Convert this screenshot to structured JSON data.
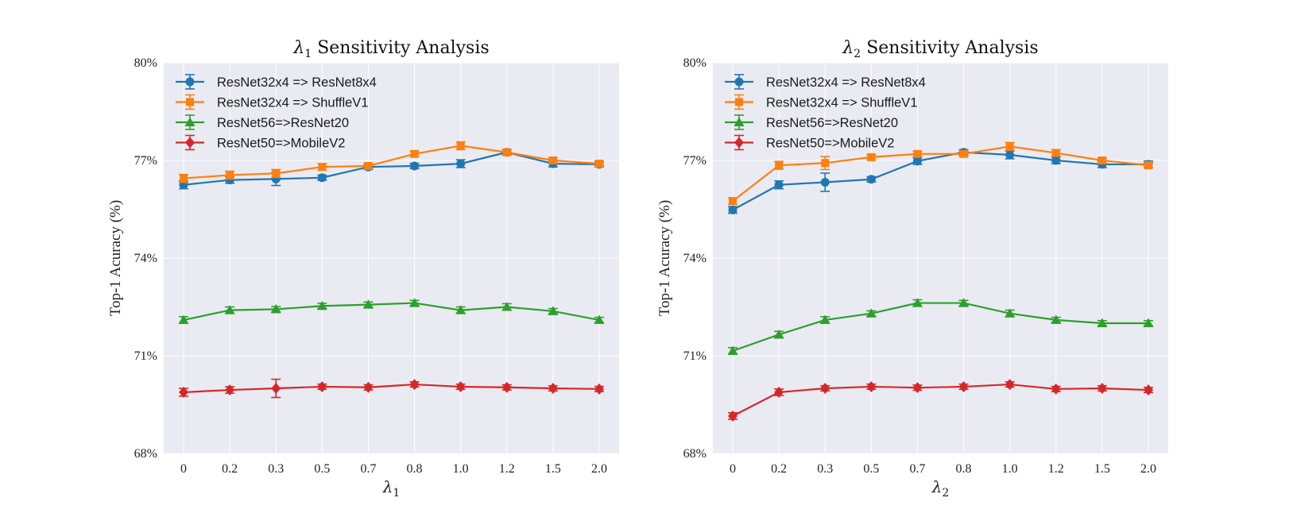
{
  "chart_data": [
    {
      "type": "line",
      "title": "λ1 Sensitivity Analysis",
      "title_symbol": "λ",
      "title_subscript": "1",
      "title_rest": " Sensitivity Analysis",
      "xlabel": "λ1",
      "xlabel_symbol": "λ",
      "xlabel_subscript": "1",
      "ylabel": "Top-1 Acuracy (%)",
      "categories": [
        "0",
        "0.2",
        "0.3",
        "0.5",
        "0.7",
        "0.8",
        "1.0",
        "1.2",
        "1.5",
        "2.0"
      ],
      "ylim": [
        68,
        80
      ],
      "yticks": [
        68,
        71,
        74,
        77,
        80
      ],
      "ytick_labels": [
        "68%",
        "71%",
        "74%",
        "77%",
        "80%"
      ],
      "grid": true,
      "legend_position": "upper-left",
      "series": [
        {
          "name": "ResNet32x4 => ResNet8x4",
          "color": "#1f77b4",
          "marker": "circle",
          "values": [
            76.25,
            76.4,
            76.43,
            76.47,
            76.8,
            76.83,
            76.9,
            77.25,
            76.9,
            76.88
          ],
          "errors": [
            0.12,
            0.1,
            0.2,
            0.08,
            0.08,
            0.08,
            0.12,
            0.08,
            0.1,
            0.08
          ]
        },
        {
          "name": "ResNet32x4 => ShuffleV1",
          "color": "#ff7f0e",
          "marker": "square",
          "values": [
            76.45,
            76.55,
            76.6,
            76.8,
            76.83,
            77.2,
            77.45,
            77.25,
            77.0,
            76.9
          ],
          "errors": [
            0.12,
            0.12,
            0.12,
            0.1,
            0.08,
            0.08,
            0.12,
            0.08,
            0.08,
            0.08
          ]
        },
        {
          "name": "ResNet56=>ResNet20",
          "color": "#2ca02c",
          "marker": "triangle",
          "values": [
            72.1,
            72.4,
            72.43,
            72.53,
            72.57,
            72.62,
            72.4,
            72.5,
            72.37,
            72.1
          ],
          "errors": [
            0.1,
            0.1,
            0.08,
            0.08,
            0.08,
            0.08,
            0.1,
            0.1,
            0.08,
            0.08
          ]
        },
        {
          "name": "ResNet50=>MobileV2",
          "color": "#d62728",
          "marker": "diamond",
          "values": [
            69.88,
            69.95,
            70.0,
            70.05,
            70.03,
            70.12,
            70.05,
            70.03,
            70.0,
            69.98
          ],
          "errors": [
            0.12,
            0.1,
            0.28,
            0.08,
            0.08,
            0.08,
            0.08,
            0.08,
            0.08,
            0.08
          ]
        }
      ]
    },
    {
      "type": "line",
      "title": "λ2 Sensitivity Analysis",
      "title_symbol": "λ",
      "title_subscript": "2",
      "title_rest": " Sensitivity Analysis",
      "xlabel": "λ2",
      "xlabel_symbol": "λ",
      "xlabel_subscript": "2",
      "ylabel": "Top-1 Acuracy (%)",
      "categories": [
        "0",
        "0.2",
        "0.3",
        "0.5",
        "0.7",
        "0.8",
        "1.0",
        "1.2",
        "1.5",
        "2.0"
      ],
      "ylim": [
        68,
        80
      ],
      "yticks": [
        68,
        71,
        74,
        77,
        80
      ],
      "ytick_labels": [
        "68%",
        "71%",
        "74%",
        "77%",
        "80%"
      ],
      "grid": true,
      "legend_position": "upper-left",
      "series": [
        {
          "name": "ResNet32x4 => ResNet8x4",
          "color": "#1f77b4",
          "marker": "circle",
          "values": [
            75.48,
            76.25,
            76.33,
            76.42,
            76.98,
            77.25,
            77.17,
            77.0,
            76.88,
            76.88
          ],
          "errors": [
            0.1,
            0.12,
            0.28,
            0.08,
            0.1,
            0.08,
            0.12,
            0.1,
            0.1,
            0.1
          ]
        },
        {
          "name": "ResNet32x4 => ShuffleV1",
          "color": "#ff7f0e",
          "marker": "square",
          "values": [
            75.75,
            76.85,
            76.92,
            77.1,
            77.2,
            77.2,
            77.43,
            77.23,
            77.0,
            76.85
          ],
          "errors": [
            0.1,
            0.12,
            0.2,
            0.08,
            0.08,
            0.08,
            0.12,
            0.1,
            0.08,
            0.08
          ]
        },
        {
          "name": "ResNet56=>ResNet20",
          "color": "#2ca02c",
          "marker": "triangle",
          "values": [
            71.15,
            71.65,
            72.1,
            72.3,
            72.62,
            72.62,
            72.3,
            72.1,
            72.0,
            72.0
          ],
          "errors": [
            0.1,
            0.1,
            0.1,
            0.08,
            0.1,
            0.08,
            0.1,
            0.08,
            0.08,
            0.08
          ]
        },
        {
          "name": "ResNet50=>MobileV2",
          "color": "#d62728",
          "marker": "diamond",
          "values": [
            69.15,
            69.88,
            70.0,
            70.05,
            70.02,
            70.05,
            70.12,
            69.98,
            70.0,
            69.95
          ],
          "errors": [
            0.1,
            0.1,
            0.08,
            0.08,
            0.08,
            0.08,
            0.08,
            0.08,
            0.08,
            0.08
          ]
        }
      ]
    }
  ]
}
